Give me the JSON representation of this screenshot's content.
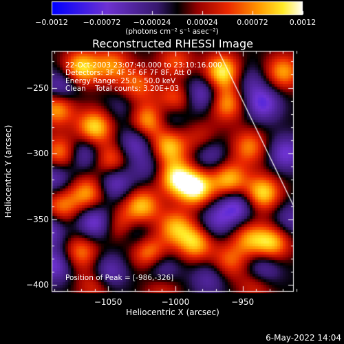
{
  "chart_data": {
    "type": "heatmap",
    "title": "Reconstructed RHESSI Image",
    "xlabel": "Heliocentric X (arcsec)",
    "ylabel": "Heliocentric Y (arcsec)",
    "xlim": [
      -1092,
      -912
    ],
    "ylim": [
      -405,
      -222
    ],
    "x_ticks": [
      -1050,
      -1000,
      -950
    ],
    "x_tick_labels": [
      "−1050",
      "−1000",
      "−950"
    ],
    "y_ticks": [
      -250,
      -300,
      -350,
      -400
    ],
    "y_tick_labels": [
      "−250",
      "−300",
      "−350",
      "−400"
    ],
    "colorbar": {
      "min": -0.0012,
      "max": 0.0012,
      "ticks": [
        -0.0012,
        -0.00072,
        -0.00024,
        0.00024,
        0.00072,
        0.0012
      ],
      "tick_labels": [
        "−0.0012",
        "−0.00072",
        "−0.00024",
        "0.00024",
        "0.00072",
        "0.0012"
      ],
      "units_label": "(photons cm⁻² s⁻¹ asec⁻²)"
    },
    "annotations": [
      "22-Oct-2003 23:07:40.000 to 23:10:16.000",
      "Detectors: 3F 4F 5F 6F 7F 8F, Att 0",
      "Energy Range: 25.0 - 50.0 keV",
      "Clean    Total counts: 3.20E+03"
    ],
    "peak_label": "Position of Peak = [-986,-326]",
    "limb_line": {
      "x": [
        -968,
        -912
      ],
      "y": [
        -222,
        -340
      ]
    },
    "blobs_positive": [
      [
        -1070,
        -235,
        1.0
      ],
      [
        -1047,
        -233,
        0.7
      ],
      [
        -1000,
        -233,
        0.8
      ],
      [
        -965,
        -238,
        1.1
      ],
      [
        -920,
        -238,
        0.8
      ],
      [
        -1028,
        -248,
        0.6
      ],
      [
        -1088,
        -265,
        0.9
      ],
      [
        -1060,
        -280,
        1.0
      ],
      [
        -1020,
        -275,
        0.9
      ],
      [
        -1000,
        -258,
        0.7
      ],
      [
        -962,
        -262,
        0.8
      ],
      [
        -1085,
        -300,
        0.8
      ],
      [
        -1048,
        -305,
        0.7
      ],
      [
        -1005,
        -295,
        0.9
      ],
      [
        -1000,
        -318,
        1.0
      ],
      [
        -985,
        -326,
        1.2
      ],
      [
        -960,
        -320,
        0.9
      ],
      [
        -945,
        -295,
        0.7
      ],
      [
        -935,
        -330,
        1.0
      ],
      [
        -1065,
        -330,
        0.8
      ],
      [
        -1025,
        -340,
        0.9
      ],
      [
        -1085,
        -340,
        0.7
      ],
      [
        -1040,
        -355,
        0.6
      ],
      [
        -1000,
        -356,
        0.8
      ],
      [
        -985,
        -368,
        0.9
      ],
      [
        -945,
        -365,
        0.7
      ],
      [
        -928,
        -368,
        0.9
      ],
      [
        -1070,
        -375,
        0.7
      ],
      [
        -1020,
        -375,
        0.8
      ],
      [
        -960,
        -382,
        0.6
      ],
      [
        -1060,
        -400,
        0.5
      ],
      [
        -1010,
        -400,
        0.6
      ],
      [
        -940,
        -400,
        0.5
      ],
      [
        -1040,
        -260,
        0.5
      ],
      [
        -980,
        -290,
        0.5
      ]
    ],
    "blobs_negative": [
      [
        -1085,
        -250,
        0.9
      ],
      [
        -1040,
        -262,
        1.0
      ],
      [
        -1005,
        -272,
        0.6
      ],
      [
        -980,
        -255,
        0.9
      ],
      [
        -935,
        -262,
        1.0
      ],
      [
        -1068,
        -300,
        0.8
      ],
      [
        -1030,
        -292,
        0.8
      ],
      [
        -975,
        -300,
        0.8
      ],
      [
        -918,
        -300,
        0.9
      ],
      [
        -1090,
        -318,
        0.8
      ],
      [
        -1045,
        -322,
        0.9
      ],
      [
        -1020,
        -310,
        0.5
      ],
      [
        -955,
        -340,
        1.0
      ],
      [
        -1095,
        -358,
        0.9
      ],
      [
        -1060,
        -352,
        1.0
      ],
      [
        -1030,
        -360,
        0.7
      ],
      [
        -970,
        -352,
        0.7
      ],
      [
        -1090,
        -385,
        0.9
      ],
      [
        -1050,
        -390,
        0.8
      ],
      [
        -1010,
        -390,
        0.9
      ],
      [
        -975,
        -395,
        0.6
      ],
      [
        -935,
        -388,
        0.8
      ],
      [
        -915,
        -350,
        0.6
      ],
      [
        -1000,
        -240,
        0.5
      ],
      [
        -945,
        -245,
        0.5
      ]
    ]
  },
  "footer": {
    "date": "6-May-2022 14:04"
  }
}
